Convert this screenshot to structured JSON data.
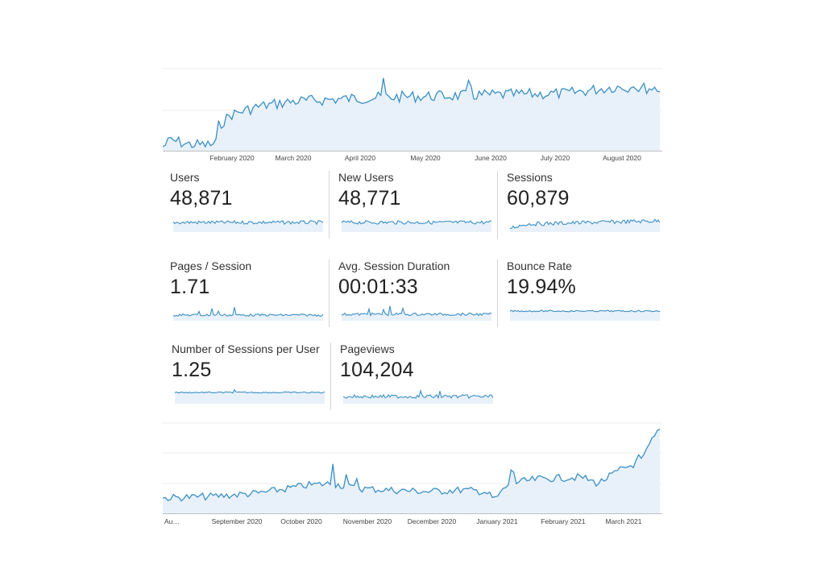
{
  "accent_color": "#3b8fc4",
  "fill_color": "#e8f1fa",
  "top_chart": {
    "x_ticks": [
      "February 2020",
      "March 2020",
      "April 2020",
      "May 2020",
      "June 2020",
      "July 2020",
      "August 2020"
    ]
  },
  "bottom_chart": {
    "x_ticks": [
      "Au…",
      "September 2020",
      "October 2020",
      "November 2020",
      "December 2020",
      "January 2021",
      "February 2021",
      "March 2021"
    ]
  },
  "metrics": [
    {
      "label": "Users",
      "value": "48,871"
    },
    {
      "label": "New Users",
      "value": "48,771"
    },
    {
      "label": "Sessions",
      "value": "60,879"
    },
    {
      "label": "Pages / Session",
      "value": "1.71"
    },
    {
      "label": "Avg. Session Duration",
      "value": "00:01:33"
    },
    {
      "label": "Bounce Rate",
      "value": "19.94%"
    },
    {
      "label": "Number of Sessions per User",
      "value": "1.25"
    },
    {
      "label": "Pageviews",
      "value": "104,204"
    }
  ]
}
